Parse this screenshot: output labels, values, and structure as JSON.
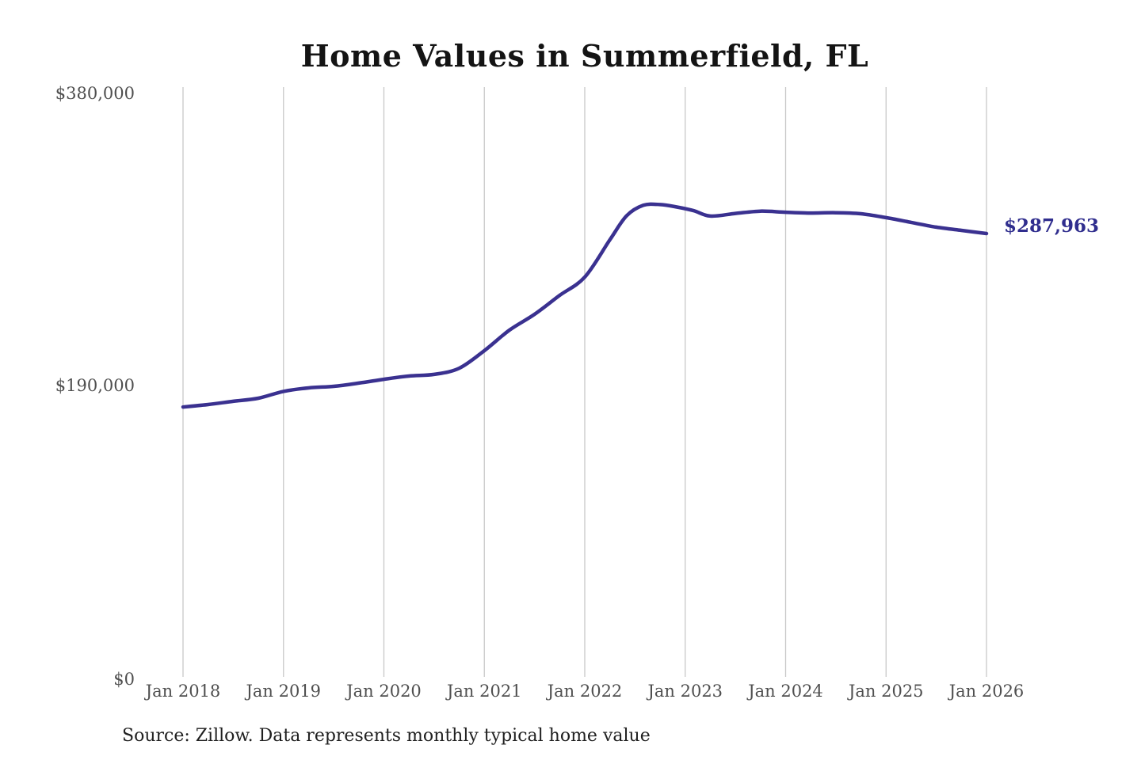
{
  "title": "Home Values in Summerfield, FL",
  "source_note": "Source: Zillow. Data represents monthly typical home value",
  "colors": {
    "line": "#3a3190",
    "end_label": "#302e8e",
    "grid": "#c8c8c8",
    "axis_text": "#4f4f4f",
    "title_text": "#141414",
    "source_text": "#202020",
    "background": "#ffffff"
  },
  "chart_data": {
    "type": "line",
    "title": "Home Values in Summerfield, FL",
    "series_name": "Monthly typical home value",
    "xlabel": "",
    "ylabel": "",
    "ylim": [
      0,
      380000
    ],
    "grid": "vertical-only",
    "legend": "none",
    "end_label": "$287,963",
    "end_value": 287963,
    "x_ticks": [
      "Jan 2018",
      "Jan 2019",
      "Jan 2020",
      "Jan 2021",
      "Jan 2022",
      "Jan 2023",
      "Jan 2024",
      "Jan 2025",
      "Jan 2026"
    ],
    "y_ticks": [
      {
        "label": "$380,000",
        "value": 380000
      },
      {
        "label": "$190,000",
        "value": 190000
      },
      {
        "label": "$0",
        "value": 0
      }
    ],
    "points": [
      {
        "date": "2018-01",
        "value": 175300
      },
      {
        "date": "2018-04",
        "value": 176900
      },
      {
        "date": "2018-07",
        "value": 179000
      },
      {
        "date": "2018-10",
        "value": 181000
      },
      {
        "date": "2019-01",
        "value": 185400
      },
      {
        "date": "2019-04",
        "value": 187700
      },
      {
        "date": "2019-07",
        "value": 188700
      },
      {
        "date": "2019-10",
        "value": 190800
      },
      {
        "date": "2020-01",
        "value": 193300
      },
      {
        "date": "2020-04",
        "value": 195400
      },
      {
        "date": "2020-07",
        "value": 196500
      },
      {
        "date": "2020-10",
        "value": 200500
      },
      {
        "date": "2021-01",
        "value": 211900
      },
      {
        "date": "2021-04",
        "value": 225200
      },
      {
        "date": "2021-07",
        "value": 235500
      },
      {
        "date": "2021-10",
        "value": 247800
      },
      {
        "date": "2022-01",
        "value": 259700
      },
      {
        "date": "2022-04",
        "value": 283900
      },
      {
        "date": "2022-06",
        "value": 299500
      },
      {
        "date": "2022-08",
        "value": 306300
      },
      {
        "date": "2022-10",
        "value": 306800
      },
      {
        "date": "2022-12",
        "value": 305200
      },
      {
        "date": "2023-02",
        "value": 302800
      },
      {
        "date": "2023-04",
        "value": 299300
      },
      {
        "date": "2023-07",
        "value": 301000
      },
      {
        "date": "2023-10",
        "value": 302500
      },
      {
        "date": "2024-01",
        "value": 301800
      },
      {
        "date": "2024-04",
        "value": 301300
      },
      {
        "date": "2024-07",
        "value": 301500
      },
      {
        "date": "2024-10",
        "value": 300800
      },
      {
        "date": "2025-01",
        "value": 298300
      },
      {
        "date": "2025-04",
        "value": 295200
      },
      {
        "date": "2025-07",
        "value": 292100
      },
      {
        "date": "2025-10",
        "value": 290000
      },
      {
        "date": "2026-01",
        "value": 287963
      }
    ]
  }
}
